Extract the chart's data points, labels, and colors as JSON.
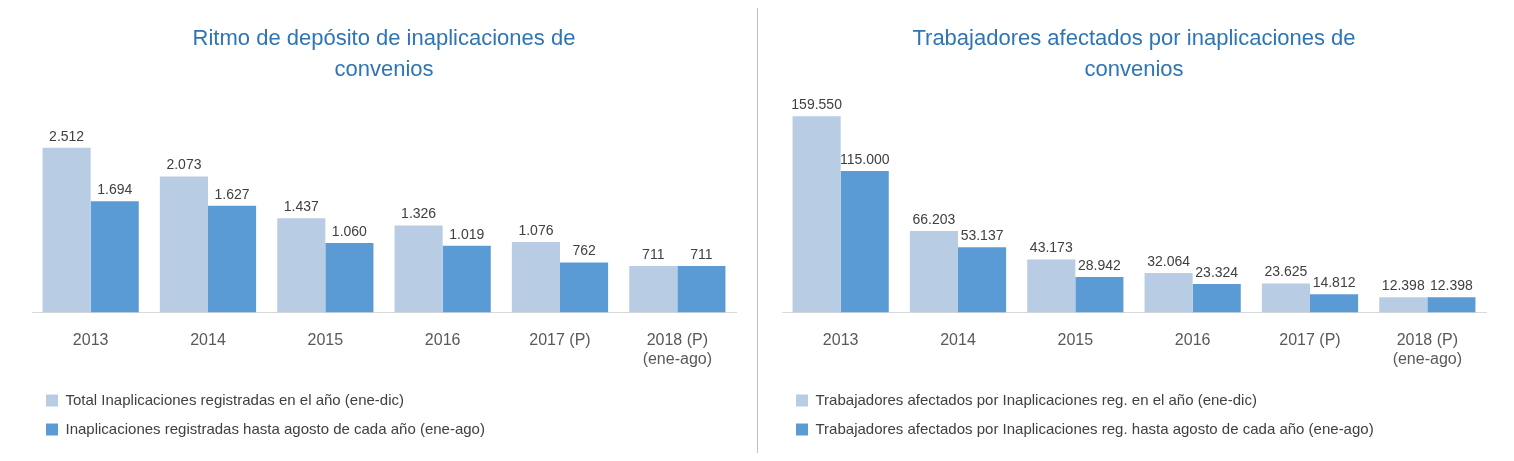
{
  "chart_data": [
    {
      "type": "bar",
      "title": "Ritmo de depósito de inaplicaciones de convenios",
      "categories": [
        "2013",
        "2014",
        "2015",
        "2016",
        "2017 (P)",
        "2018 (P)\n(ene-ago)"
      ],
      "legend": "bottom",
      "series": [
        {
          "name": "Total Inaplicaciones registradas en el año (ene-dic)",
          "color": "#b8cce4",
          "values": [
            2512,
            2073,
            1437,
            1326,
            1076,
            711
          ],
          "value_labels": [
            "2.512",
            "2.073",
            "1.437",
            "1.326",
            "1.076",
            "711"
          ]
        },
        {
          "name": "Inaplicaciones registradas hasta agosto de cada año (ene-ago)",
          "color": "#5b9bd5",
          "values": [
            1694,
            1627,
            1060,
            1019,
            762,
            711
          ],
          "value_labels": [
            "1.694",
            "1.627",
            "1.060",
            "1.019",
            "762",
            "711"
          ]
        }
      ]
    },
    {
      "type": "bar",
      "title": "Trabajadores afectados por inaplicaciones de convenios",
      "categories": [
        "2013",
        "2014",
        "2015",
        "2016",
        "2017 (P)",
        "2018 (P)\n(ene-ago)"
      ],
      "legend": "bottom",
      "series": [
        {
          "name": "Trabajadores afectados por Inaplicaciones reg. en el año (ene-dic)",
          "color": "#b8cce4",
          "values": [
            159550,
            66203,
            43173,
            32064,
            23625,
            12398
          ],
          "value_labels": [
            "159.550",
            "66.203",
            "43.173",
            "32.064",
            "23.625",
            "12.398"
          ]
        },
        {
          "name": "Trabajadores afectados por Inaplicaciones reg. hasta agosto de cada año (ene-ago)",
          "color": "#5b9bd5",
          "values": [
            115000,
            53137,
            28942,
            23324,
            14812,
            12398
          ],
          "value_labels": [
            "115.000",
            "53.137",
            "28.942",
            "23.324",
            "14.812",
            "12.398"
          ]
        }
      ]
    }
  ]
}
